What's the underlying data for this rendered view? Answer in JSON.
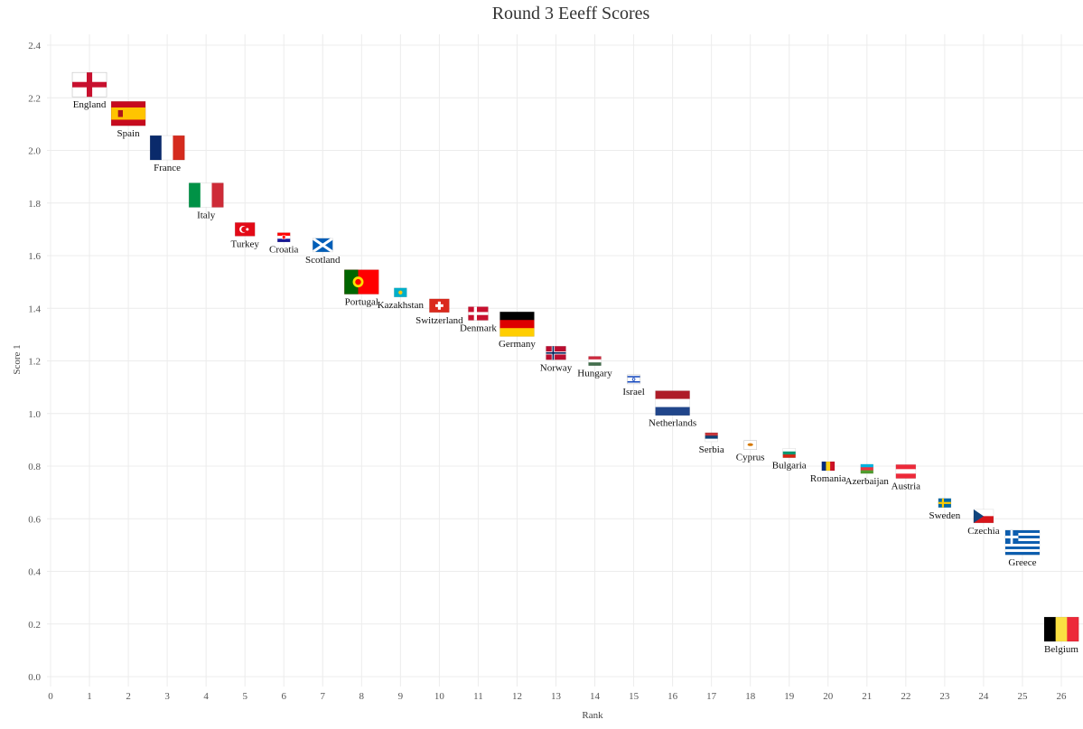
{
  "chart_data": {
    "type": "scatter",
    "title": "Round 3 Eeeff Scores",
    "xlabel": "Rank",
    "ylabel": "Score 1",
    "xlim": [
      0,
      26
    ],
    "ylim": [
      0.0,
      2.4
    ],
    "x_ticks": [
      "0",
      "1",
      "2",
      "3",
      "4",
      "5",
      "6",
      "7",
      "8",
      "9",
      "10",
      "11",
      "12",
      "13",
      "14",
      "15",
      "16",
      "17",
      "18",
      "19",
      "20",
      "21",
      "22",
      "23",
      "24",
      "25",
      "26"
    ],
    "y_ticks": [
      "0.0",
      "0.2",
      "0.4",
      "0.6",
      "0.8",
      "1.0",
      "1.2",
      "1.4",
      "1.6",
      "1.8",
      "2.0",
      "2.2",
      "2.4"
    ],
    "grid": true,
    "points": [
      {
        "rank": 1,
        "score": 2.25,
        "label": "England",
        "flag": "england",
        "size": 3
      },
      {
        "rank": 2,
        "score": 2.14,
        "label": "Spain",
        "flag": "spain",
        "size": 3
      },
      {
        "rank": 3,
        "score": 2.01,
        "label": "France",
        "flag": "france",
        "size": 3
      },
      {
        "rank": 4,
        "score": 1.83,
        "label": "Italy",
        "flag": "italy",
        "size": 3
      },
      {
        "rank": 5,
        "score": 1.7,
        "label": "Turkey",
        "flag": "turkey",
        "size": 2
      },
      {
        "rank": 6,
        "score": 1.67,
        "label": "Croatia",
        "flag": "croatia",
        "size": 1
      },
      {
        "rank": 7,
        "score": 1.64,
        "label": "Scotland",
        "flag": "scotland",
        "size": 2
      },
      {
        "rank": 8,
        "score": 1.5,
        "label": "Portugal",
        "flag": "portugal",
        "size": 3
      },
      {
        "rank": 9,
        "score": 1.46,
        "label": "Kazakhstan",
        "flag": "kazakhstan",
        "size": 1
      },
      {
        "rank": 10,
        "score": 1.41,
        "label": "Switzerland",
        "flag": "switzerland",
        "size": 2
      },
      {
        "rank": 11,
        "score": 1.38,
        "label": "Denmark",
        "flag": "denmark",
        "size": 2
      },
      {
        "rank": 12,
        "score": 1.34,
        "label": "Germany",
        "flag": "germany",
        "size": 4
      },
      {
        "rank": 13,
        "score": 1.23,
        "label": "Norway",
        "flag": "norway",
        "size": 2
      },
      {
        "rank": 14,
        "score": 1.2,
        "label": "Hungary",
        "flag": "hungary",
        "size": 1
      },
      {
        "rank": 15,
        "score": 1.13,
        "label": "Israel",
        "flag": "israel",
        "size": 1
      },
      {
        "rank": 16,
        "score": 1.04,
        "label": "Netherlands",
        "flag": "netherlands",
        "size": 4
      },
      {
        "rank": 17,
        "score": 0.91,
        "label": "Serbia",
        "flag": "serbia",
        "size": 1
      },
      {
        "rank": 18,
        "score": 0.88,
        "label": "Cyprus",
        "flag": "cyprus",
        "size": 1
      },
      {
        "rank": 19,
        "score": 0.85,
        "label": "Bulgaria",
        "flag": "bulgaria",
        "size": 1
      },
      {
        "rank": 20,
        "score": 0.8,
        "label": "Romania",
        "flag": "romania",
        "size": 1
      },
      {
        "rank": 21,
        "score": 0.79,
        "label": "Azerbaijan",
        "flag": "azerbaijan",
        "size": 1
      },
      {
        "rank": 22,
        "score": 0.78,
        "label": "Austria",
        "flag": "austria",
        "size": 2
      },
      {
        "rank": 23,
        "score": 0.66,
        "label": "Sweden",
        "flag": "sweden",
        "size": 1
      },
      {
        "rank": 24,
        "score": 0.61,
        "label": "Czechia",
        "flag": "czechia",
        "size": 2
      },
      {
        "rank": 25,
        "score": 0.51,
        "label": "Greece",
        "flag": "greece",
        "size": 3
      },
      {
        "rank": 26,
        "score": 0.18,
        "label": "Belgium",
        "flag": "belgium",
        "size": 3
      }
    ],
    "colors": {
      "grid": "#ececec",
      "text": "#333333"
    }
  }
}
